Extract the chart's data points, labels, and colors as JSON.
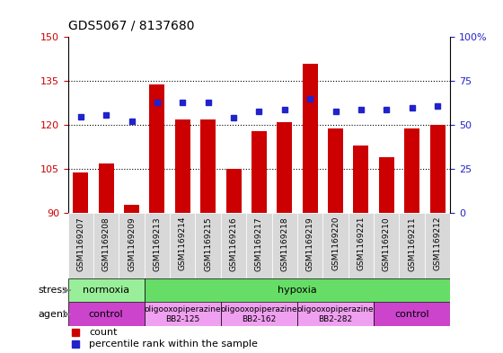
{
  "title": "GDS5067 / 8137680",
  "samples": [
    "GSM1169207",
    "GSM1169208",
    "GSM1169209",
    "GSM1169213",
    "GSM1169214",
    "GSM1169215",
    "GSM1169216",
    "GSM1169217",
    "GSM1169218",
    "GSM1169219",
    "GSM1169220",
    "GSM1169221",
    "GSM1169210",
    "GSM1169211",
    "GSM1169212"
  ],
  "bar_values": [
    104,
    107,
    93,
    134,
    122,
    122,
    105,
    118,
    121,
    141,
    119,
    113,
    109,
    119,
    120
  ],
  "dot_values": [
    55,
    56,
    52,
    63,
    63,
    63,
    54,
    58,
    59,
    65,
    58,
    59,
    59,
    60,
    61
  ],
  "bar_color": "#cc0000",
  "dot_color": "#2222cc",
  "ylim_left": [
    90,
    150
  ],
  "ylim_right": [
    0,
    100
  ],
  "yticks_left": [
    90,
    105,
    120,
    135,
    150
  ],
  "yticks_right": [
    0,
    25,
    50,
    75,
    100
  ],
  "grid_values": [
    105,
    120,
    135
  ],
  "stress_groups": [
    {
      "label": "normoxia",
      "start": 0,
      "end": 3,
      "color": "#99ee99"
    },
    {
      "label": "hypoxia",
      "start": 3,
      "end": 15,
      "color": "#66dd66"
    }
  ],
  "agent_groups": [
    {
      "label": "control",
      "start": 0,
      "end": 3,
      "color": "#cc44cc"
    },
    {
      "label": "oligooxopiperazine\nBB2-125",
      "start": 3,
      "end": 6,
      "color": "#f0a0f0"
    },
    {
      "label": "oligooxopiperazine\nBB2-162",
      "start": 6,
      "end": 9,
      "color": "#f0a0f0"
    },
    {
      "label": "oligooxopiperazine\nBB2-282",
      "start": 9,
      "end": 12,
      "color": "#f0a0f0"
    },
    {
      "label": "control",
      "start": 12,
      "end": 15,
      "color": "#cc44cc"
    }
  ],
  "plot_bg": "#ffffff",
  "tick_bg": "#d8d8d8"
}
